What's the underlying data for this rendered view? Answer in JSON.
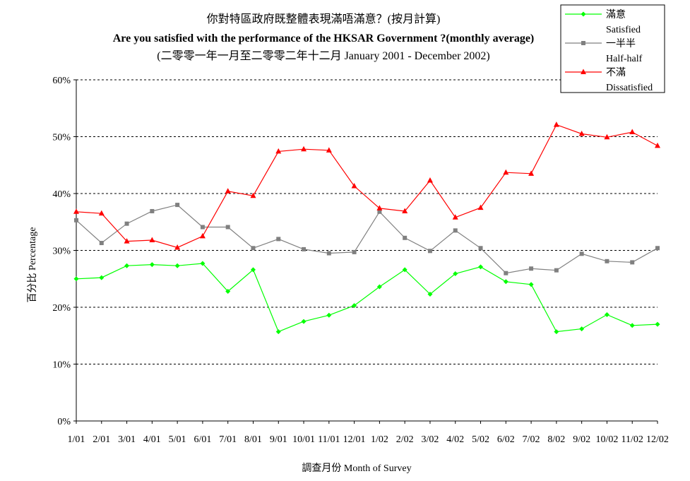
{
  "chart_data": {
    "type": "line",
    "title_lines": [
      "你對特區政府既整體表現滿唔滿意？(按月計算)",
      "Are you satisfied with the performance of the HKSAR Government ?(monthly average)",
      "(二零零一年一月至二零零二年十二月 January 2001 - December 2002)"
    ],
    "xlabel": "調查月份 Month of Survey",
    "ylabel": "百分比 Percentage",
    "categories": [
      "1/01",
      "2/01",
      "3/01",
      "4/01",
      "5/01",
      "6/01",
      "7/01",
      "8/01",
      "9/01",
      "10/01",
      "11/01",
      "12/01",
      "1/02",
      "2/02",
      "3/02",
      "4/02",
      "5/02",
      "6/02",
      "7/02",
      "8/02",
      "9/02",
      "10/02",
      "11/02",
      "12/02"
    ],
    "ylim": [
      0,
      60
    ],
    "yticks": [
      0,
      10,
      20,
      30,
      40,
      50,
      60
    ],
    "ytick_labels": [
      "0%",
      "10%",
      "20%",
      "30%",
      "40%",
      "50%",
      "60%"
    ],
    "grid": "horizontal dashed",
    "legend_position": "top-right",
    "series": [
      {
        "name": "滿意",
        "name_en": "Satisfied",
        "color": "#00ff00",
        "marker": "diamond",
        "values": [
          25.0,
          25.2,
          27.3,
          27.5,
          27.3,
          27.7,
          22.8,
          26.6,
          15.7,
          17.5,
          18.6,
          20.3,
          23.6,
          26.6,
          22.3,
          25.9,
          27.1,
          24.5,
          24.0,
          15.7,
          16.2,
          18.7,
          16.8,
          17.0
        ]
      },
      {
        "name": "一半半",
        "name_en": "Half-half",
        "color": "#808080",
        "marker": "square",
        "values": [
          35.3,
          31.3,
          34.7,
          36.9,
          38.0,
          34.1,
          34.1,
          30.4,
          32.0,
          30.2,
          29.5,
          29.7,
          36.8,
          32.2,
          29.9,
          33.5,
          30.4,
          26.0,
          26.8,
          26.5,
          29.4,
          28.1,
          27.9,
          30.4
        ]
      },
      {
        "name": "不滿",
        "name_en": "Dissatisfied",
        "color": "#ff0000",
        "marker": "triangle",
        "values": [
          36.8,
          36.5,
          31.6,
          31.8,
          30.5,
          32.5,
          40.4,
          39.6,
          47.4,
          47.8,
          47.6,
          41.3,
          37.4,
          36.9,
          42.3,
          35.8,
          37.5,
          43.7,
          43.5,
          52.1,
          50.5,
          49.9,
          50.8,
          48.4
        ]
      }
    ]
  }
}
